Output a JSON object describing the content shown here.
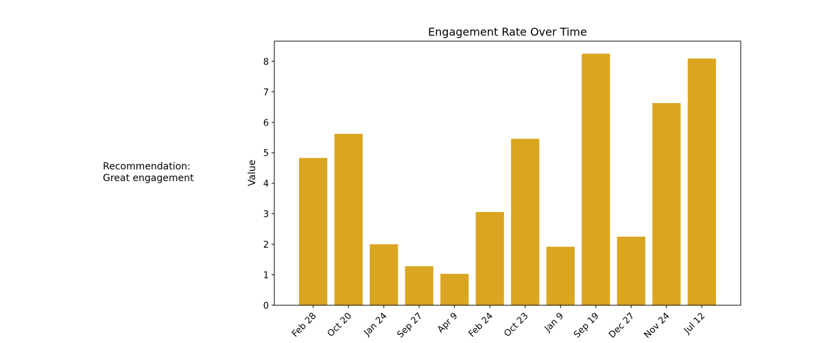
{
  "annotation": {
    "line1": "Recommendation:",
    "line2": "Great engagement"
  },
  "chart_data": {
    "type": "bar",
    "title": "Engagement Rate Over Time",
    "xlabel": "",
    "ylabel": "Value",
    "categories": [
      "Feb 28",
      "Oct 20",
      "Jan 24",
      "Sep 27",
      "Apr 9",
      "Feb 24",
      "Oct 23",
      "Jan 9",
      "Sep 19",
      "Dec 27",
      "Nov 24",
      "Jul 12"
    ],
    "values": [
      4.83,
      5.62,
      2.0,
      1.28,
      1.03,
      3.06,
      5.46,
      1.92,
      8.25,
      2.25,
      6.63,
      8.09
    ],
    "ylim": [
      0,
      8.66
    ],
    "yticks": [
      0,
      1,
      2,
      3,
      4,
      5,
      6,
      7,
      8
    ],
    "bar_color": "#daa520",
    "grid": false,
    "legend": "none"
  }
}
